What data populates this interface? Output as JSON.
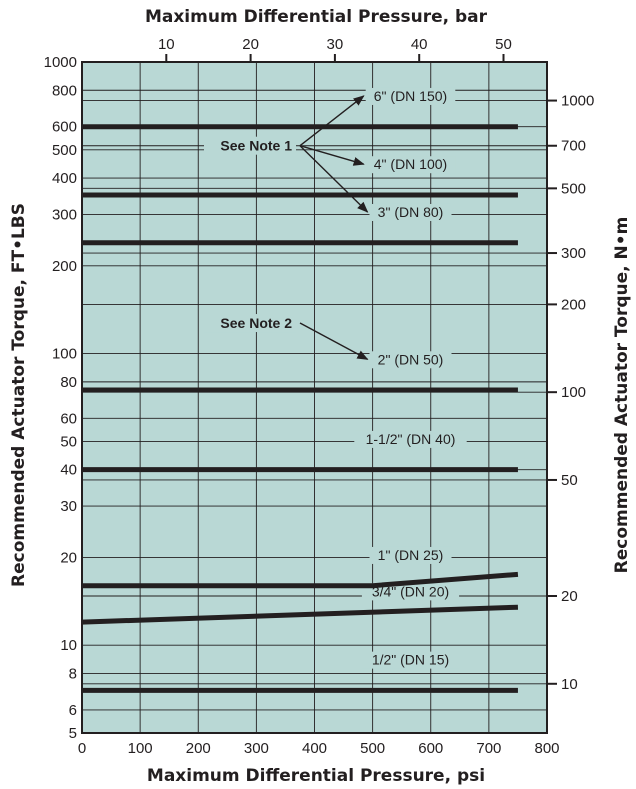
{
  "chart_data": {
    "type": "line",
    "title": "",
    "xlabel": "Maximum Differential Pressure, psi",
    "x2label": "Maximum Differential Pressure, bar",
    "ylabel": "Recommended Actuator Torque, FT•LBS",
    "y2label": "Recommended Actuator Torque, N•m",
    "xlim": [
      0,
      800
    ],
    "x2lim": [
      0,
      55.16
    ],
    "ylim": [
      5,
      1000
    ],
    "y2lim": [
      6.78,
      1356
    ],
    "yscale": "log",
    "y2scale": "log",
    "grid": true,
    "plot_background": "#b9d8d5",
    "line_color": "#231f20",
    "x_ticks": [
      "0",
      "100",
      "200",
      "300",
      "400",
      "500",
      "600",
      "700",
      "800"
    ],
    "x2_ticks": [
      "10",
      "20",
      "30",
      "40",
      "50"
    ],
    "y_ticks": [
      "5",
      "6",
      "8",
      "10",
      "20",
      "30",
      "40",
      "50",
      "60",
      "80",
      "100",
      "200",
      "300",
      "400",
      "500",
      "600",
      "800",
      "1000"
    ],
    "y2_ticks": [
      "10",
      "20",
      "50",
      "100",
      "200",
      "300",
      "500",
      "700",
      "1000"
    ],
    "series": [
      {
        "name": "1/2\" (DN 15)",
        "x": [
          0,
          750
        ],
        "y": [
          7,
          7
        ]
      },
      {
        "name": "3/4\" (DN 20)",
        "x": [
          0,
          750
        ],
        "y": [
          12,
          13.5
        ]
      },
      {
        "name": "1\" (DN 25)",
        "x": [
          0,
          500,
          750
        ],
        "y": [
          16,
          16,
          17.5
        ]
      },
      {
        "name": "1-1/2\" (DN 40)",
        "x": [
          0,
          750
        ],
        "y": [
          40,
          40
        ]
      },
      {
        "name": "2\" (DN 50)",
        "x": [
          0,
          750
        ],
        "y": [
          75,
          75
        ]
      },
      {
        "name": "3\" (DN 80)",
        "x": [
          0,
          750
        ],
        "y": [
          240,
          240
        ]
      },
      {
        "name": "4\" (DN 100)",
        "x": [
          0,
          750
        ],
        "y": [
          350,
          350
        ]
      },
      {
        "name": "6\" (DN 150)",
        "x": [
          0,
          750
        ],
        "y": [
          600,
          600
        ]
      }
    ],
    "notes": [
      {
        "text": "See Note 1",
        "targets": [
          "6\" (DN 150)",
          "4\" (DN 100)",
          "3\" (DN 80)"
        ]
      },
      {
        "text": "See Note 2",
        "targets": [
          "2\" (DN 50)"
        ]
      }
    ]
  }
}
